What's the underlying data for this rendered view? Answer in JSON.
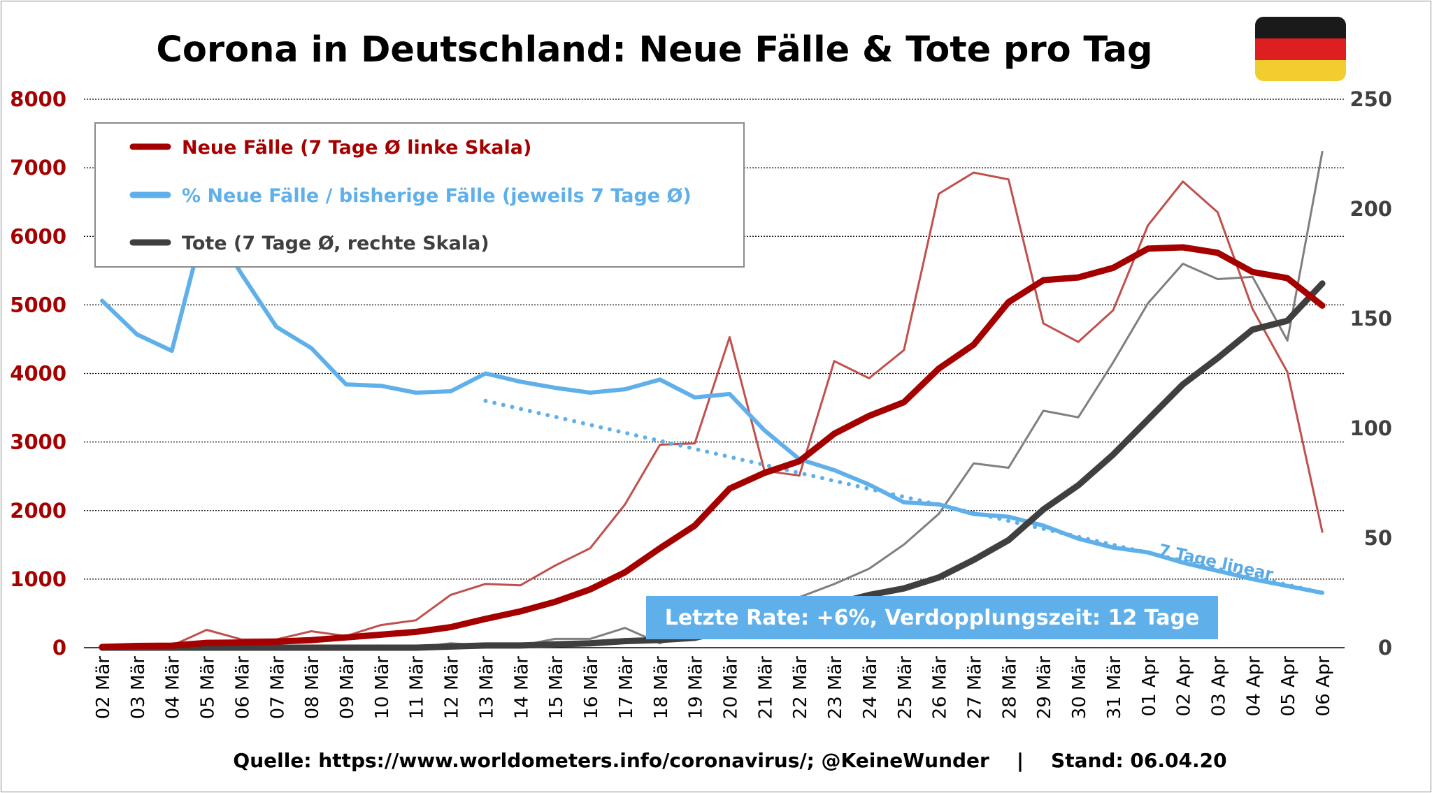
{
  "title": "Corona in Deutschland: Neue Fälle & Tote pro Tag",
  "source_text": "Quelle: https://www.worldometers.info/coronavirus/; @KeineWunder    |    Stand: 06.04.20",
  "annotation": "Letzte Rate: +6%, Verdopplungszeit: 12 Tage",
  "trend_label": "7 Tage linear",
  "colors": {
    "cases_avg": "#a50000",
    "cases_daily": "#c0504d",
    "pct_avg": "#5fb0ea",
    "deaths_avg": "#3f3f3f",
    "deaths_daily": "#7f7f7f",
    "flag": [
      "#1a1a1a",
      "#dd1f1f",
      "#f2cd2e"
    ]
  },
  "chart_data": {
    "type": "line",
    "title": "Corona in Deutschland: Neue Fälle & Tote pro Tag",
    "categories": [
      "02 Mär",
      "03 Mär",
      "04 Mär",
      "05 Mär",
      "06 Mär",
      "07 Mär",
      "08 Mär",
      "09 Mär",
      "10 Mär",
      "11 Mär",
      "12 Mär",
      "13 Mär",
      "14 Mär",
      "15 Mär",
      "16 Mär",
      "17 Mär",
      "18 Mär",
      "19 Mär",
      "20 Mär",
      "21 Mär",
      "22 Mär",
      "23 Mär",
      "24 Mär",
      "25 Mär",
      "26 Mär",
      "27 Mär",
      "28 Mär",
      "29 Mär",
      "30 Mär",
      "31 Mär",
      "01 Apr",
      "02 Apr",
      "03 Apr",
      "04 Apr",
      "05 Apr",
      "06 Apr"
    ],
    "y_left": {
      "min": 0,
      "max": 8000,
      "ticks": [
        "0",
        "1000",
        "2000",
        "3000",
        "4000",
        "5000",
        "6000",
        "7000",
        "8000"
      ]
    },
    "y_right": {
      "min": 0,
      "max": 250,
      "ticks": [
        "0",
        "50",
        "100",
        "150",
        "200",
        "250"
      ]
    },
    "grid": true,
    "legend_position": "top-left",
    "legend": [
      "Neue Fälle (7 Tage Ø linke Skala)",
      "% Neue Fälle / bisherige Fälle (jeweils 7 Tage Ø)",
      "Tote (7 Tage Ø, rechte Skala)"
    ],
    "series": [
      {
        "name": "Neue Fälle (7 Tage Ø linke Skala)",
        "axis": "left",
        "style": "thick",
        "values": [
          10,
          25,
          30,
          70,
          75,
          90,
          110,
          150,
          190,
          230,
          300,
          420,
          530,
          670,
          850,
          1100,
          1450,
          1780,
          2320,
          2550,
          2720,
          3120,
          3380,
          3580,
          4070,
          4420,
          5040,
          5360,
          5400,
          5540,
          5820,
          5840,
          5760,
          5480,
          5390,
          4990
        ]
      },
      {
        "name": "",
        "axis": "left",
        "style": "thin",
        "values": [
          10,
          40,
          30,
          260,
          120,
          120,
          240,
          170,
          330,
          400,
          770,
          930,
          910,
          1200,
          1450,
          2090,
          2960,
          2980,
          4530,
          2580,
          2510,
          4180,
          3930,
          4340,
          6620,
          6930,
          6830,
          4730,
          4460,
          4920,
          6160,
          6800,
          6350,
          4940,
          4020,
          1690
        ]
      },
      {
        "name": "% Neue Fälle / bisherige Fälle (jeweils 7 Tage Ø)",
        "axis": "left",
        "style": "thick",
        "values": [
          5060,
          4570,
          4330,
          6300,
          5450,
          4680,
          4370,
          3840,
          3820,
          3720,
          3740,
          4000,
          3880,
          3790,
          3720,
          3770,
          3910,
          3650,
          3700,
          3170,
          2750,
          2590,
          2380,
          2120,
          2090,
          1950,
          1910,
          1780,
          1590,
          1460,
          1390,
          1240,
          1120,
          1000,
          900,
          800
        ]
      },
      {
        "name": "Tote (7 Tage Ø, rechte Skala)",
        "axis": "right",
        "style": "thick",
        "values": [
          0,
          0,
          0,
          0,
          0,
          0,
          0,
          0,
          0,
          0,
          0.5,
          1,
          1,
          1.5,
          2,
          3,
          3.5,
          4.5,
          8,
          10,
          14,
          20,
          24,
          27,
          32,
          40,
          49,
          63,
          74,
          88,
          104,
          120,
          132,
          145,
          149,
          166
        ]
      },
      {
        "name": "",
        "axis": "right",
        "style": "thin",
        "values": [
          0,
          0,
          0,
          0,
          0,
          0,
          0,
          0,
          1,
          0,
          2,
          1,
          1,
          4,
          4,
          9,
          2,
          9,
          18,
          17,
          23,
          29,
          36,
          47,
          61,
          84,
          82,
          108,
          105,
          130,
          157,
          175,
          168,
          169,
          140,
          226
        ]
      }
    ],
    "trendline": {
      "name": "7 Tage linear",
      "axis": "left",
      "from_category": "13 Mär",
      "to_category": "06 Apr",
      "y_start": 3600,
      "y_end": 800
    }
  }
}
